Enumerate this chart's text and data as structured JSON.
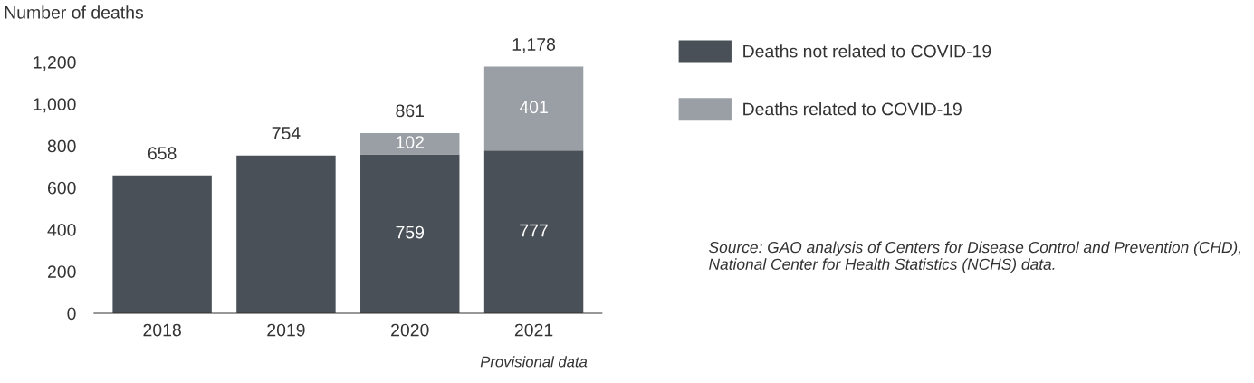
{
  "chart_data": {
    "type": "bar",
    "stacked": true,
    "ylabel": "Number of deaths",
    "categories": [
      "2018",
      "2019",
      "2020",
      "2021"
    ],
    "series": [
      {
        "name": "Deaths not related to COVID-19",
        "color": "#4a5057",
        "values": [
          658,
          754,
          759,
          777
        ],
        "value_labels": [
          null,
          null,
          "759",
          "777"
        ]
      },
      {
        "name": "Deaths related to COVID-19",
        "color": "#9a9fa5",
        "values": [
          null,
          null,
          102,
          401
        ],
        "value_labels": [
          null,
          null,
          "102",
          "401"
        ]
      }
    ],
    "totals": [
      "658",
      "754",
      "861",
      "1,178"
    ],
    "ylim": [
      0,
      1200
    ],
    "yticks": [
      0,
      {
        "value": 200,
        "label": "200"
      },
      {
        "value": 400,
        "label": "400"
      },
      {
        "value": 600,
        "label": "600"
      },
      {
        "value": 800,
        "label": "800"
      },
      {
        "value": 1000,
        "label": "1,000"
      },
      {
        "value": 1200,
        "label": "1,200"
      }
    ],
    "grid": false,
    "legend": "right",
    "annotations": [
      "Provisional data",
      "Source: GAO analysis of Centers for Disease Control and Prevention (CHD), National Center for Health Statistics (NCHS) data."
    ]
  }
}
